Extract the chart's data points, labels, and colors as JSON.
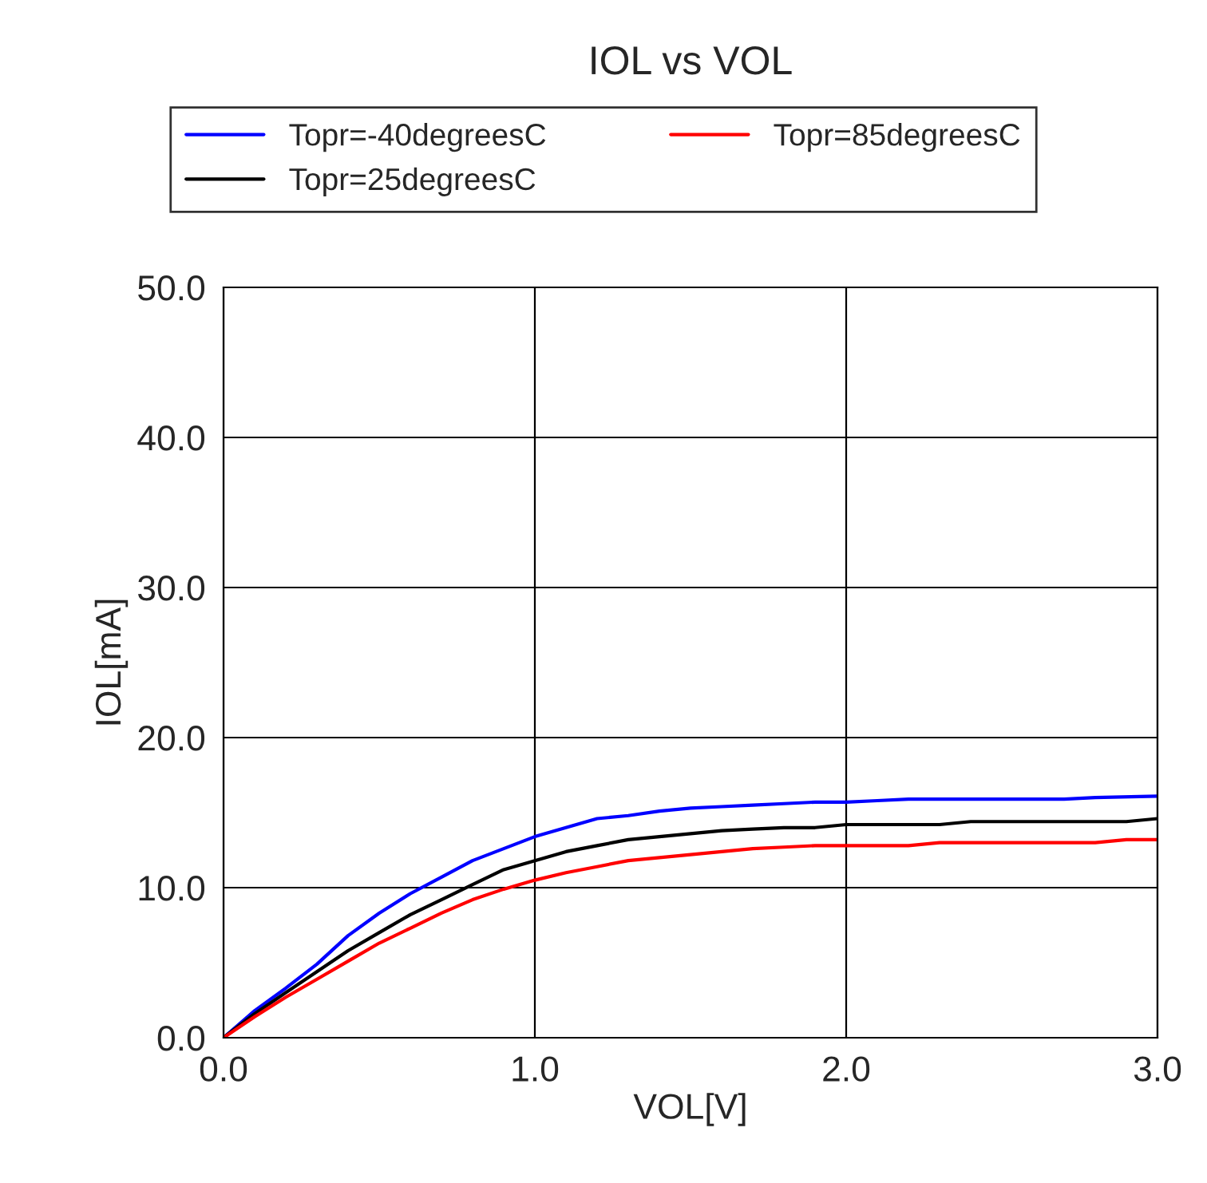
{
  "chart_data": {
    "type": "line",
    "title": "IOL vs VOL",
    "xlabel": "VOL[V]",
    "ylabel": "IOL[mA]",
    "xlim": [
      0,
      3
    ],
    "ylim": [
      0,
      50
    ],
    "xticks": [
      {
        "value": 0,
        "label": "0.0"
      },
      {
        "value": 1,
        "label": "1.0"
      },
      {
        "value": 2,
        "label": "2.0"
      },
      {
        "value": 3,
        "label": "3.0"
      }
    ],
    "yticks": [
      {
        "value": 0,
        "label": "0.0"
      },
      {
        "value": 10,
        "label": "10.0"
      },
      {
        "value": 20,
        "label": "20.0"
      },
      {
        "value": 30,
        "label": "30.0"
      },
      {
        "value": 40,
        "label": "40.0"
      },
      {
        "value": 50,
        "label": "50.0"
      }
    ],
    "grid": true,
    "legend": "top",
    "marker": "none",
    "line_style": "solid",
    "series": [
      {
        "name": "Topr=-40degreesC",
        "color": "#0000ff",
        "x": [
          0,
          0.1,
          0.2,
          0.3,
          0.4,
          0.5,
          0.6,
          0.7,
          0.8,
          0.9,
          1.0,
          1.1,
          1.2,
          1.3,
          1.4,
          1.5,
          1.6,
          1.7,
          1.8,
          1.9,
          2.0,
          2.1,
          2.2,
          2.5,
          2.7,
          2.8,
          3.0
        ],
        "values": [
          0,
          1.8,
          3.3,
          4.9,
          6.8,
          8.3,
          9.6,
          10.7,
          11.8,
          12.6,
          13.4,
          14.0,
          14.6,
          14.8,
          15.1,
          15.3,
          15.4,
          15.5,
          15.6,
          15.7,
          15.7,
          15.8,
          15.9,
          15.9,
          15.9,
          16.0,
          16.1
        ]
      },
      {
        "name": "Topr=25degreesC",
        "color": "#000000",
        "x": [
          0,
          0.1,
          0.2,
          0.3,
          0.4,
          0.5,
          0.6,
          0.7,
          0.8,
          0.9,
          1.0,
          1.1,
          1.2,
          1.3,
          1.4,
          1.5,
          1.6,
          1.7,
          1.8,
          1.9,
          2.0,
          2.3,
          2.4,
          2.9,
          3.0
        ],
        "values": [
          0,
          1.6,
          3.0,
          4.4,
          5.8,
          7.0,
          8.2,
          9.2,
          10.2,
          11.2,
          11.8,
          12.4,
          12.8,
          13.2,
          13.4,
          13.6,
          13.8,
          13.9,
          14.0,
          14.0,
          14.2,
          14.2,
          14.4,
          14.4,
          14.6
        ]
      },
      {
        "name": "Topr=85degreesC",
        "color": "#ff0000",
        "x": [
          0,
          0.1,
          0.2,
          0.3,
          0.4,
          0.5,
          0.6,
          0.7,
          0.8,
          0.9,
          1.0,
          1.1,
          1.2,
          1.3,
          1.4,
          1.5,
          1.6,
          1.7,
          1.8,
          1.9,
          2.2,
          2.3,
          2.8,
          2.9,
          3.0
        ],
        "values": [
          0,
          1.4,
          2.7,
          3.9,
          5.1,
          6.3,
          7.3,
          8.3,
          9.2,
          9.9,
          10.5,
          11.0,
          11.4,
          11.8,
          12.0,
          12.2,
          12.4,
          12.6,
          12.7,
          12.8,
          12.8,
          13.0,
          13.0,
          13.2,
          13.2
        ]
      }
    ]
  }
}
